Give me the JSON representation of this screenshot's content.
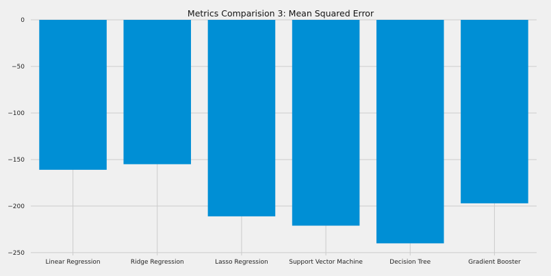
{
  "chart_data": {
    "type": "bar",
    "title": "Metrics Comparision 3: Mean Squared Error",
    "xlabel": "",
    "ylabel": "",
    "categories": [
      "Linear Regression",
      "Ridge Regression",
      "Lasso Regression",
      "Support Vector Machine",
      "Decision Tree",
      "Gradient Booster"
    ],
    "values": [
      -161,
      -155,
      -211,
      -221,
      -240,
      -197
    ],
    "ylim": [
      -253,
      0
    ],
    "yticks": [
      0,
      -50,
      -100,
      -150,
      -200,
      -250
    ],
    "ytick_labels": [
      "0",
      "−50",
      "−100",
      "−150",
      "−200",
      "−250"
    ],
    "grid": true,
    "colors": {
      "bar": "#008fd5",
      "background": "#f0f0f0",
      "grid": "#cbcbcb"
    }
  }
}
